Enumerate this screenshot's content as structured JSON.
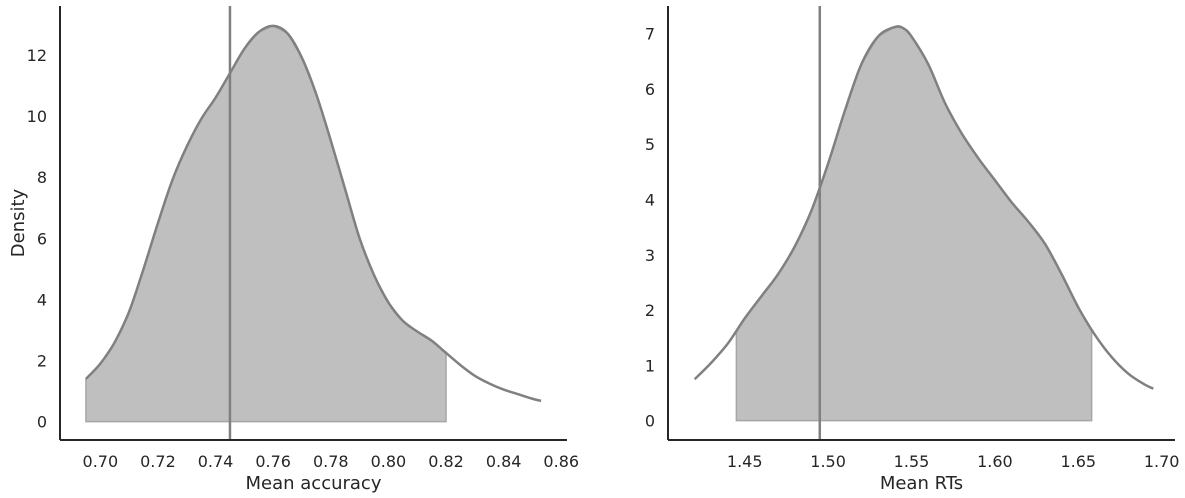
{
  "chart_data": [
    {
      "type": "area",
      "xlabel": "Mean accuracy",
      "ylabel": "Density",
      "xlim": [
        0.686,
        0.862
      ],
      "ylim": [
        -0.6,
        13.6
      ],
      "xticks": [
        0.7,
        0.72,
        0.74,
        0.76,
        0.78,
        0.8,
        0.82,
        0.84,
        0.86
      ],
      "xtick_labels": [
        "0.70",
        "0.72",
        "0.74",
        "0.76",
        "0.78",
        "0.80",
        "0.82",
        "0.84",
        "0.86"
      ],
      "yticks": [
        0,
        2,
        4,
        6,
        8,
        10,
        12
      ],
      "ytick_labels": [
        "0",
        "2",
        "4",
        "6",
        "8",
        "10",
        "12"
      ],
      "grid": false,
      "density_curve": {
        "x": [
          0.695,
          0.7,
          0.705,
          0.71,
          0.715,
          0.72,
          0.725,
          0.73,
          0.735,
          0.74,
          0.745,
          0.75,
          0.755,
          0.76,
          0.765,
          0.77,
          0.775,
          0.78,
          0.785,
          0.79,
          0.795,
          0.8,
          0.805,
          0.81,
          0.815,
          0.82,
          0.825,
          0.83,
          0.835,
          0.84,
          0.845,
          0.85,
          0.853
        ],
        "y": [
          1.4,
          1.9,
          2.6,
          3.6,
          5.0,
          6.5,
          7.9,
          9.0,
          9.9,
          10.6,
          11.4,
          12.2,
          12.75,
          12.95,
          12.7,
          11.9,
          10.7,
          9.2,
          7.6,
          6.0,
          4.8,
          3.9,
          3.3,
          2.95,
          2.65,
          2.25,
          1.85,
          1.5,
          1.25,
          1.05,
          0.9,
          0.75,
          0.68
        ]
      },
      "shaded_interval": [
        0.695,
        0.82
      ],
      "reference_line_x": 0.745,
      "colors": {
        "line": "#808080",
        "fill": "#bfbfbf",
        "axis": "#262626"
      }
    },
    {
      "type": "area",
      "xlabel": "Mean RTs",
      "ylabel": "",
      "xlim": [
        1.404,
        1.708
      ],
      "ylim": [
        -0.35,
        7.5
      ],
      "xticks": [
        1.45,
        1.5,
        1.55,
        1.6,
        1.65,
        1.7
      ],
      "xtick_labels": [
        "1.45",
        "1.50",
        "1.55",
        "1.60",
        "1.65",
        "1.70"
      ],
      "yticks": [
        0,
        1,
        2,
        3,
        4,
        5,
        6,
        7
      ],
      "ytick_labels": [
        "0",
        "1",
        "2",
        "3",
        "4",
        "5",
        "6",
        "7"
      ],
      "grid": false,
      "density_curve": {
        "x": [
          1.42,
          1.43,
          1.44,
          1.45,
          1.46,
          1.47,
          1.48,
          1.49,
          1.5,
          1.51,
          1.52,
          1.53,
          1.54,
          1.545,
          1.55,
          1.56,
          1.57,
          1.58,
          1.59,
          1.6,
          1.61,
          1.62,
          1.63,
          1.64,
          1.65,
          1.66,
          1.67,
          1.68,
          1.69,
          1.695
        ],
        "y": [
          0.75,
          1.05,
          1.4,
          1.85,
          2.25,
          2.65,
          3.15,
          3.8,
          4.65,
          5.6,
          6.45,
          6.95,
          7.12,
          7.1,
          6.95,
          6.45,
          5.75,
          5.2,
          4.75,
          4.35,
          3.95,
          3.6,
          3.2,
          2.65,
          2.05,
          1.55,
          1.15,
          0.85,
          0.65,
          0.58
        ]
      },
      "shaded_interval": [
        1.445,
        1.658
      ],
      "reference_line_x": 1.495,
      "colors": {
        "line": "#808080",
        "fill": "#bfbfbf",
        "axis": "#262626"
      }
    }
  ]
}
